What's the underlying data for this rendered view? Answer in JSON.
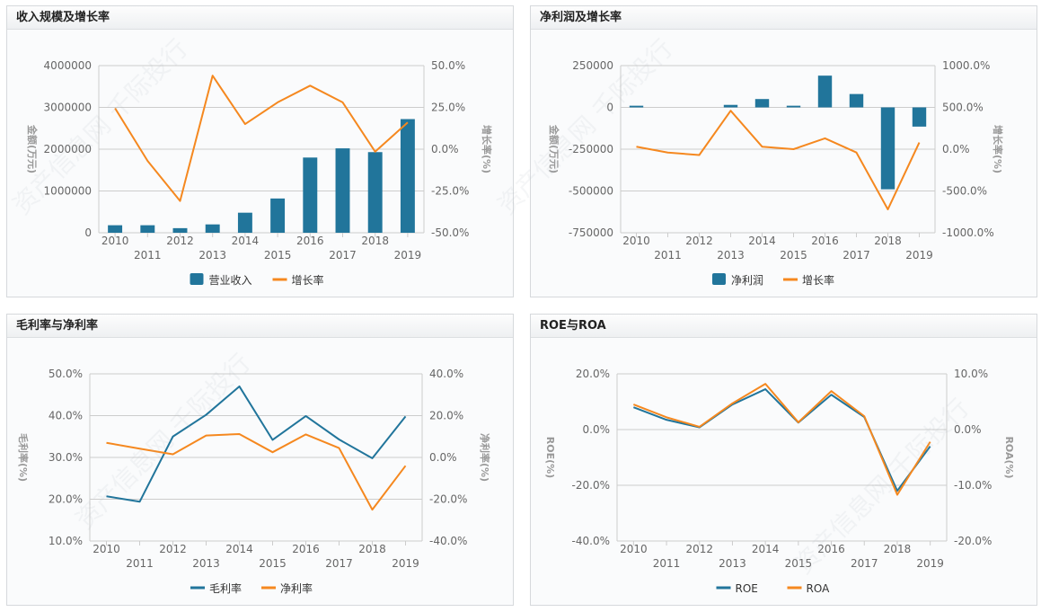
{
  "watermark": "资产信息网 千际投行",
  "colors": {
    "blue": "#21759b",
    "orange": "#f5881f",
    "grid": "#cccccc",
    "tick_text": "#666666",
    "axis_title": "#999999"
  },
  "panels": [
    {
      "title": "收入规模及增长率"
    },
    {
      "title": "净利润及增长率"
    },
    {
      "title": "毛利率与净利率"
    },
    {
      "title": "ROE与ROA"
    }
  ],
  "chart_data": [
    {
      "type": "bar+line",
      "title": "收入规模及增长率",
      "categories": [
        "2010",
        "2011",
        "2012",
        "2013",
        "2014",
        "2015",
        "2016",
        "2017",
        "2018",
        "2019"
      ],
      "ylabel": "金额(万元)",
      "y2label": "增长率(%)",
      "ylim": [
        0,
        4000000
      ],
      "yticks": [
        "0",
        "1000000",
        "2000000",
        "3000000",
        "4000000"
      ],
      "y2lim": [
        -50,
        50
      ],
      "y2ticks": [
        "-50.0%",
        "-25.0%",
        "0.0%",
        "25.0%",
        "50.0%"
      ],
      "grid": true,
      "legend": "bottom",
      "series": [
        {
          "name": "营业收入",
          "kind": "bar",
          "axis": "left",
          "color": "#21759b",
          "values": [
            180000,
            180000,
            110000,
            200000,
            480000,
            820000,
            1800000,
            2020000,
            1930000,
            2720000
          ]
        },
        {
          "name": "增长率",
          "kind": "line",
          "axis": "right",
          "color": "#f5881f",
          "values": [
            24.5,
            -7,
            -31,
            44,
            15,
            28,
            38,
            28,
            -1.5,
            16
          ]
        }
      ]
    },
    {
      "type": "bar+line",
      "title": "净利润及增长率",
      "categories": [
        "2010",
        "2011",
        "2012",
        "2013",
        "2014",
        "2015",
        "2016",
        "2017",
        "2018",
        "2019"
      ],
      "ylabel": "金额(万元)",
      "y2label": "增长率(%)",
      "ylim": [
        -750000,
        250000
      ],
      "yticks": [
        "-750000",
        "-500000",
        "-250000",
        "0",
        "250000"
      ],
      "y2lim": [
        -1000,
        1000
      ],
      "y2ticks": [
        "-1000.0%",
        "-500.0%",
        "0.0%",
        "500.0%",
        "1000.0%"
      ],
      "grid": true,
      "legend": "bottom",
      "series": [
        {
          "name": "净利润",
          "kind": "bar",
          "axis": "left",
          "color": "#21759b",
          "values": [
            10000,
            0,
            0,
            15000,
            50000,
            10000,
            190000,
            80000,
            -490000,
            -115000
          ]
        },
        {
          "name": "增长率",
          "kind": "line",
          "axis": "right",
          "color": "#f5881f",
          "values": [
            30,
            -40,
            -70,
            460,
            30,
            0,
            130,
            -40,
            -720,
            80
          ]
        }
      ]
    },
    {
      "type": "line",
      "title": "毛利率与净利率",
      "categories": [
        "2010",
        "2011",
        "2012",
        "2013",
        "2014",
        "2015",
        "2016",
        "2017",
        "2018",
        "2019"
      ],
      "ylabel": "毛利率(%)",
      "y2label": "净利率(%)",
      "ylim": [
        10,
        50
      ],
      "yticks": [
        "10.0%",
        "20.0%",
        "30.0%",
        "40.0%",
        "50.0%"
      ],
      "y2lim": [
        -40,
        40
      ],
      "y2ticks": [
        "-40.0%",
        "-20.0%",
        "0.0%",
        "20.0%",
        "40.0%"
      ],
      "grid": true,
      "legend": "bottom",
      "series": [
        {
          "name": "毛利率",
          "kind": "line",
          "axis": "left",
          "color": "#21759b",
          "values": [
            20.7,
            19.4,
            35,
            40.2,
            47,
            34.2,
            39.9,
            34.3,
            29.8,
            39.8
          ]
        },
        {
          "name": "净利率",
          "kind": "line",
          "axis": "right",
          "color": "#f5881f",
          "values": [
            7,
            4.2,
            1.5,
            10.5,
            11.2,
            2.5,
            11,
            4.5,
            -25,
            -4
          ]
        }
      ]
    },
    {
      "type": "line",
      "title": "ROE与ROA",
      "categories": [
        "2010",
        "2011",
        "2012",
        "2013",
        "2014",
        "2015",
        "2016",
        "2017",
        "2018",
        "2019"
      ],
      "ylabel": "ROE(%)",
      "y2label": "ROA(%)",
      "ylim": [
        -40,
        20
      ],
      "yticks": [
        "-40.0%",
        "-20.0%",
        "0.0%",
        "20.0%"
      ],
      "y2lim": [
        -20,
        10
      ],
      "y2ticks": [
        "-20.0%",
        "-10.0%",
        "0.0%",
        "10.0%"
      ],
      "grid": true,
      "legend": "bottom",
      "series": [
        {
          "name": "ROE",
          "kind": "line",
          "axis": "left",
          "color": "#21759b",
          "values": [
            8,
            3.5,
            0.8,
            9,
            14.5,
            2.5,
            12.5,
            4.5,
            -22,
            -6
          ]
        },
        {
          "name": "ROA",
          "kind": "line",
          "axis": "right",
          "color": "#f5881f",
          "values": [
            4.5,
            2.2,
            0.5,
            4.7,
            8.2,
            1.3,
            6.9,
            2.4,
            -11.7,
            -2.2
          ]
        }
      ]
    }
  ]
}
